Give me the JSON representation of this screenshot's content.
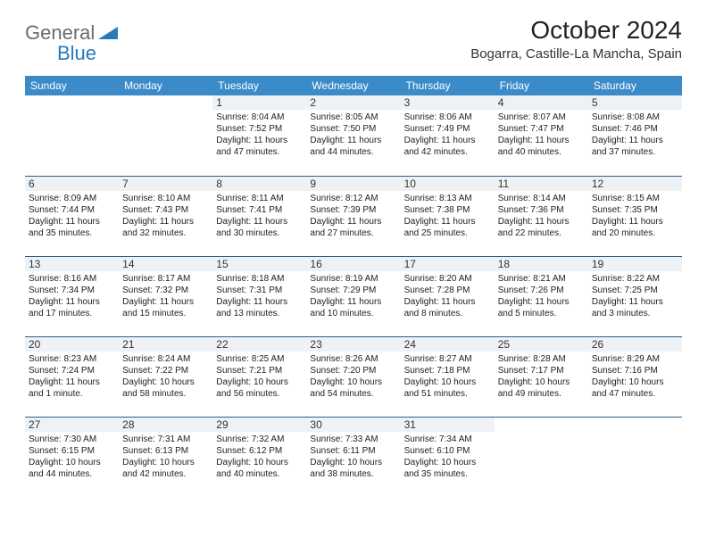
{
  "brand": {
    "part1": "General",
    "part2": "Blue",
    "triangle_color": "#2a7ab8"
  },
  "title": "October 2024",
  "location": "Bogarra, Castille-La Mancha, Spain",
  "colors": {
    "header_bg": "#3b8bc8",
    "header_text": "#ffffff",
    "row_border": "#2e5e8a",
    "daybar_bg": "#eef2f5",
    "text": "#222222",
    "logo_gray": "#6b6b6b",
    "logo_blue": "#2a7ab8"
  },
  "weekdays": [
    "Sunday",
    "Monday",
    "Tuesday",
    "Wednesday",
    "Thursday",
    "Friday",
    "Saturday"
  ],
  "weeks": [
    [
      null,
      null,
      {
        "n": "1",
        "sr": "8:04 AM",
        "ss": "7:52 PM",
        "dl": "11 hours and 47 minutes."
      },
      {
        "n": "2",
        "sr": "8:05 AM",
        "ss": "7:50 PM",
        "dl": "11 hours and 44 minutes."
      },
      {
        "n": "3",
        "sr": "8:06 AM",
        "ss": "7:49 PM",
        "dl": "11 hours and 42 minutes."
      },
      {
        "n": "4",
        "sr": "8:07 AM",
        "ss": "7:47 PM",
        "dl": "11 hours and 40 minutes."
      },
      {
        "n": "5",
        "sr": "8:08 AM",
        "ss": "7:46 PM",
        "dl": "11 hours and 37 minutes."
      }
    ],
    [
      {
        "n": "6",
        "sr": "8:09 AM",
        "ss": "7:44 PM",
        "dl": "11 hours and 35 minutes."
      },
      {
        "n": "7",
        "sr": "8:10 AM",
        "ss": "7:43 PM",
        "dl": "11 hours and 32 minutes."
      },
      {
        "n": "8",
        "sr": "8:11 AM",
        "ss": "7:41 PM",
        "dl": "11 hours and 30 minutes."
      },
      {
        "n": "9",
        "sr": "8:12 AM",
        "ss": "7:39 PM",
        "dl": "11 hours and 27 minutes."
      },
      {
        "n": "10",
        "sr": "8:13 AM",
        "ss": "7:38 PM",
        "dl": "11 hours and 25 minutes."
      },
      {
        "n": "11",
        "sr": "8:14 AM",
        "ss": "7:36 PM",
        "dl": "11 hours and 22 minutes."
      },
      {
        "n": "12",
        "sr": "8:15 AM",
        "ss": "7:35 PM",
        "dl": "11 hours and 20 minutes."
      }
    ],
    [
      {
        "n": "13",
        "sr": "8:16 AM",
        "ss": "7:34 PM",
        "dl": "11 hours and 17 minutes."
      },
      {
        "n": "14",
        "sr": "8:17 AM",
        "ss": "7:32 PM",
        "dl": "11 hours and 15 minutes."
      },
      {
        "n": "15",
        "sr": "8:18 AM",
        "ss": "7:31 PM",
        "dl": "11 hours and 13 minutes."
      },
      {
        "n": "16",
        "sr": "8:19 AM",
        "ss": "7:29 PM",
        "dl": "11 hours and 10 minutes."
      },
      {
        "n": "17",
        "sr": "8:20 AM",
        "ss": "7:28 PM",
        "dl": "11 hours and 8 minutes."
      },
      {
        "n": "18",
        "sr": "8:21 AM",
        "ss": "7:26 PM",
        "dl": "11 hours and 5 minutes."
      },
      {
        "n": "19",
        "sr": "8:22 AM",
        "ss": "7:25 PM",
        "dl": "11 hours and 3 minutes."
      }
    ],
    [
      {
        "n": "20",
        "sr": "8:23 AM",
        "ss": "7:24 PM",
        "dl": "11 hours and 1 minute."
      },
      {
        "n": "21",
        "sr": "8:24 AM",
        "ss": "7:22 PM",
        "dl": "10 hours and 58 minutes."
      },
      {
        "n": "22",
        "sr": "8:25 AM",
        "ss": "7:21 PM",
        "dl": "10 hours and 56 minutes."
      },
      {
        "n": "23",
        "sr": "8:26 AM",
        "ss": "7:20 PM",
        "dl": "10 hours and 54 minutes."
      },
      {
        "n": "24",
        "sr": "8:27 AM",
        "ss": "7:18 PM",
        "dl": "10 hours and 51 minutes."
      },
      {
        "n": "25",
        "sr": "8:28 AM",
        "ss": "7:17 PM",
        "dl": "10 hours and 49 minutes."
      },
      {
        "n": "26",
        "sr": "8:29 AM",
        "ss": "7:16 PM",
        "dl": "10 hours and 47 minutes."
      }
    ],
    [
      {
        "n": "27",
        "sr": "7:30 AM",
        "ss": "6:15 PM",
        "dl": "10 hours and 44 minutes."
      },
      {
        "n": "28",
        "sr": "7:31 AM",
        "ss": "6:13 PM",
        "dl": "10 hours and 42 minutes."
      },
      {
        "n": "29",
        "sr": "7:32 AM",
        "ss": "6:12 PM",
        "dl": "10 hours and 40 minutes."
      },
      {
        "n": "30",
        "sr": "7:33 AM",
        "ss": "6:11 PM",
        "dl": "10 hours and 38 minutes."
      },
      {
        "n": "31",
        "sr": "7:34 AM",
        "ss": "6:10 PM",
        "dl": "10 hours and 35 minutes."
      },
      null,
      null
    ]
  ],
  "labels": {
    "sunrise": "Sunrise: ",
    "sunset": "Sunset: ",
    "daylight": "Daylight: "
  }
}
